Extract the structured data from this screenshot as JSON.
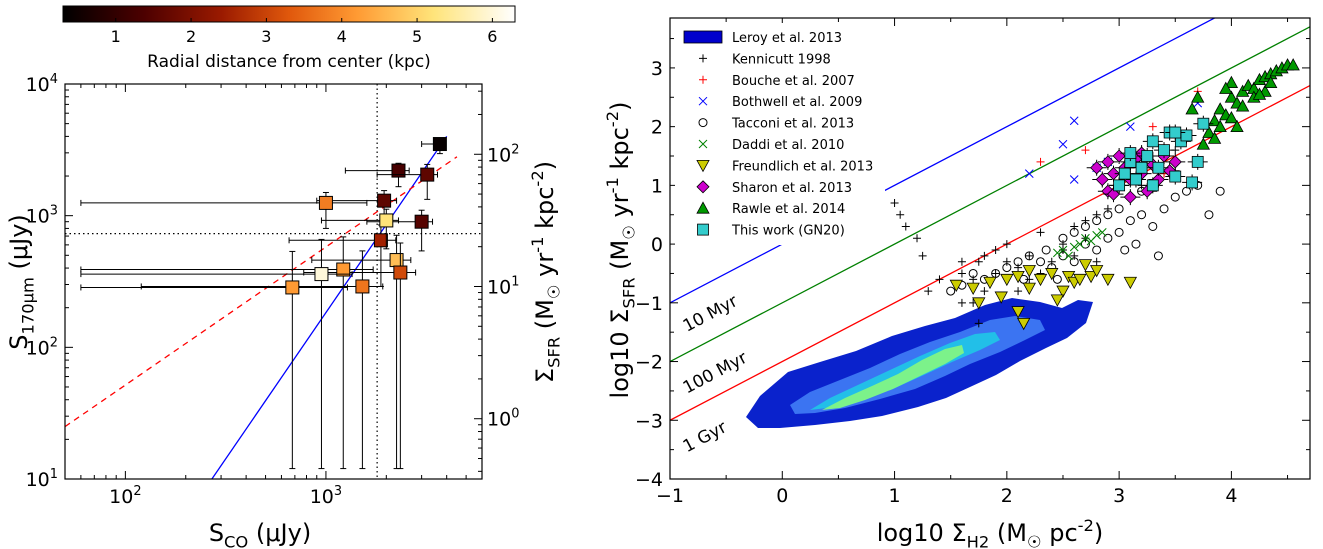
{
  "chart_data": [
    {
      "type": "scatter",
      "xlabel": "S_CO (μJy)",
      "ylabel": "S_170μm (μJy)",
      "y2label": "Σ_SFR (M_☉ yr^-1 kpc^-2)",
      "xscale": "log",
      "yscale": "log",
      "xlim": [
        50,
        6000
      ],
      "ylim": [
        10,
        10000
      ],
      "y2lim": [
        0.35,
        340
      ],
      "xticks": [
        "10^2",
        "10^3"
      ],
      "yticks": [
        "10^1",
        "10^2",
        "10^3",
        "10^4"
      ],
      "y2ticks": [
        "10^0",
        "10^1",
        "10^2"
      ],
      "colorbar": {
        "label": "Radial distance from center (kpc)",
        "range": [
          0.3,
          6.3
        ],
        "ticks": [
          "1",
          "2",
          "3",
          "4",
          "5",
          "6"
        ],
        "colormap": "afmhot"
      },
      "reference_lines": {
        "vertical_dotted_x": 1800,
        "horizontal_dotted_y": 730,
        "blue_solid": [
          [
            270,
            10
          ],
          [
            4000,
            4000
          ]
        ],
        "red_dashed": [
          [
            50,
            25
          ],
          [
            4500,
            2800
          ]
        ]
      },
      "points": [
        {
          "x": 3700,
          "y": 3500,
          "r": 0.4,
          "xerr": 200,
          "yerr": 300
        },
        {
          "x": 2300,
          "y": 2200,
          "r": 1.3,
          "xerr": 300,
          "yerr": 300
        },
        {
          "x": 3200,
          "y": 2050,
          "r": 1.6,
          "xerr": 400,
          "yerr": 400
        },
        {
          "x": 1950,
          "y": 1300,
          "r": 1.6,
          "xerr": 300,
          "yerr": 250
        },
        {
          "x": 3000,
          "y": 900,
          "r": 1.5,
          "xerr": 400,
          "yerr": 200
        },
        {
          "x": 1880,
          "y": 650,
          "r": 2.5,
          "xerr": 350,
          "yerr": 200
        },
        {
          "x": 1000,
          "y": 1250,
          "r": 3.8,
          "xerr": 600,
          "yerr": 250
        },
        {
          "x": 2000,
          "y": 920,
          "r": 5.2,
          "xerr": 300,
          "yerr": 200
        },
        {
          "x": 2250,
          "y": 460,
          "r": 4.7,
          "xerr": 400,
          "yerr": 250
        },
        {
          "x": 2350,
          "y": 370,
          "r": 3.1,
          "xerr": 450,
          "yerr": 250
        },
        {
          "x": 1220,
          "y": 390,
          "r": 4.2,
          "xerr": 500,
          "yerr": 300
        },
        {
          "x": 950,
          "y": 360,
          "r": 6.0,
          "xerr": 400,
          "yerr": 300
        },
        {
          "x": 1520,
          "y": 290,
          "r": 3.7,
          "xerr": 400,
          "yerr": 250
        },
        {
          "x": 680,
          "y": 285,
          "r": 4.2,
          "xerr": 600,
          "yerr": 250
        }
      ]
    },
    {
      "type": "scatter",
      "xlabel": "log10 Σ_H2 (M_☉ pc^-2)",
      "ylabel": "log10 Σ_SFR (M_☉ yr^-1 kpc^-2)",
      "xlim": [
        -1,
        4.7
      ],
      "ylim": [
        -4,
        3.85
      ],
      "xticks": [
        "−1",
        "0",
        "1",
        "2",
        "3",
        "4"
      ],
      "yticks": [
        "−4",
        "−3",
        "−2",
        "−1",
        "0",
        "1",
        "2",
        "3"
      ],
      "legend": "top-left",
      "lines": [
        {
          "name": "10 Myr",
          "color": "#0000ff",
          "intercept": -1.0,
          "slope": 1.0
        },
        {
          "name": "100 Myr",
          "color": "#008000",
          "intercept": -2.0,
          "slope": 1.0
        },
        {
          "name": "1 Gyr",
          "color": "#ff0000",
          "intercept": -3.0,
          "slope": 1.0
        }
      ],
      "series": [
        {
          "name": "Leroy et al. 2013",
          "marker": "contour",
          "color": "#0000cc"
        },
        {
          "name": "Kennicutt 1998",
          "marker": "plus",
          "color": "#000000",
          "points": [
            [
              1.3,
              -0.8
            ],
            [
              1.4,
              -0.6
            ],
            [
              1.6,
              -0.5
            ],
            [
              1.6,
              -0.3
            ],
            [
              1.7,
              -0.6
            ],
            [
              1.7,
              -1.0
            ],
            [
              1.75,
              -0.3
            ],
            [
              1.8,
              -0.2
            ],
            [
              1.8,
              -0.8
            ],
            [
              1.9,
              -0.5
            ],
            [
              1.9,
              -0.1
            ],
            [
              2.0,
              0.0
            ],
            [
              2.0,
              -0.3
            ],
            [
              2.1,
              -0.4
            ],
            [
              2.1,
              -0.8
            ],
            [
              2.2,
              -0.2
            ],
            [
              2.2,
              -0.6
            ],
            [
              2.3,
              0.2
            ],
            [
              2.3,
              -0.5
            ],
            [
              2.4,
              -0.3
            ],
            [
              2.5,
              0.0
            ],
            [
              2.5,
              -0.1
            ],
            [
              2.6,
              0.3
            ],
            [
              2.6,
              -0.2
            ],
            [
              2.7,
              0.1
            ],
            [
              2.7,
              0.4
            ],
            [
              2.8,
              0.5
            ],
            [
              2.8,
              -0.3
            ],
            [
              2.9,
              0.6
            ],
            [
              1.0,
              0.7
            ],
            [
              1.05,
              0.5
            ],
            [
              1.1,
              0.3
            ],
            [
              1.2,
              0.1
            ],
            [
              1.25,
              -0.2
            ],
            [
              3.1,
              1.3
            ],
            [
              3.2,
              1.0
            ],
            [
              3.3,
              1.5
            ],
            [
              3.4,
              1.2
            ],
            [
              3.5,
              1.6
            ],
            [
              3.6,
              1.9
            ],
            [
              1.75,
              -1.35
            ],
            [
              1.6,
              -1.0
            ]
          ]
        },
        {
          "name": "Bouche et al. 2007",
          "marker": "plus",
          "color": "#ff0000",
          "points": [
            [
              2.3,
              1.4
            ],
            [
              2.7,
              1.6
            ],
            [
              3.0,
              1.5
            ],
            [
              3.2,
              1.6
            ],
            [
              3.3,
              2.0
            ],
            [
              3.7,
              2.6
            ],
            [
              3.4,
              1.2
            ]
          ]
        },
        {
          "name": "Bothwell et al. 2009",
          "marker": "x",
          "color": "#0000ff",
          "points": [
            [
              2.5,
              1.7
            ],
            [
              2.2,
              1.2
            ],
            [
              2.6,
              1.1
            ],
            [
              2.8,
              1.3
            ],
            [
              2.9,
              1.4
            ],
            [
              3.0,
              1.2
            ],
            [
              3.1,
              2.0
            ],
            [
              2.6,
              2.1
            ],
            [
              3.7,
              2.4
            ]
          ]
        },
        {
          "name": "Tacconi et al. 2013",
          "marker": "circle",
          "color": "#000000",
          "points": [
            [
              1.9,
              -0.5
            ],
            [
              2.0,
              -0.4
            ],
            [
              2.1,
              -0.3
            ],
            [
              2.2,
              -0.2
            ],
            [
              2.3,
              -0.3
            ],
            [
              2.35,
              -0.1
            ],
            [
              2.4,
              -0.4
            ],
            [
              2.5,
              -0.2
            ],
            [
              2.5,
              0.1
            ],
            [
              2.6,
              -0.3
            ],
            [
              2.6,
              0.2
            ],
            [
              2.7,
              0.0
            ],
            [
              2.7,
              0.3
            ],
            [
              2.8,
              -0.1
            ],
            [
              2.8,
              0.4
            ],
            [
              2.9,
              0.1
            ],
            [
              2.9,
              0.5
            ],
            [
              3.0,
              0.2
            ],
            [
              3.0,
              0.6
            ],
            [
              3.1,
              0.4
            ],
            [
              3.1,
              0.8
            ],
            [
              3.2,
              0.5
            ],
            [
              3.2,
              0.9
            ],
            [
              3.3,
              0.3
            ],
            [
              3.3,
              1.0
            ],
            [
              3.4,
              0.6
            ],
            [
              3.5,
              0.8
            ],
            [
              3.6,
              0.9
            ],
            [
              3.7,
              1.0
            ],
            [
              3.8,
              0.5
            ],
            [
              3.9,
              0.9
            ],
            [
              1.5,
              -0.8
            ],
            [
              1.6,
              -0.7
            ],
            [
              1.7,
              -0.5
            ],
            [
              1.8,
              -0.6
            ],
            [
              2.15,
              -0.6
            ],
            [
              2.45,
              -0.6
            ],
            [
              3.15,
              0.0
            ],
            [
              3.35,
              -0.2
            ],
            [
              3.05,
              -0.1
            ]
          ]
        },
        {
          "name": "Daddi et al. 2010",
          "marker": "x",
          "color": "#008000",
          "points": [
            [
              2.5,
              -0.1
            ],
            [
              2.6,
              -0.05
            ],
            [
              2.65,
              0.0
            ],
            [
              2.7,
              0.1
            ],
            [
              2.75,
              0.05
            ],
            [
              2.8,
              0.15
            ],
            [
              2.85,
              0.2
            ],
            [
              2.55,
              -0.2
            ],
            [
              2.45,
              -0.15
            ]
          ]
        },
        {
          "name": "Freundlich et al. 2013",
          "marker": "triangle-down",
          "color": "#cccc00",
          "points": [
            [
              1.55,
              -0.7
            ],
            [
              1.7,
              -0.75
            ],
            [
              1.85,
              -0.65
            ],
            [
              2.0,
              -0.6
            ],
            [
              2.1,
              -0.55
            ],
            [
              2.2,
              -0.45
            ],
            [
              2.3,
              -0.6
            ],
            [
              2.4,
              -0.5
            ],
            [
              2.5,
              -0.8
            ],
            [
              2.55,
              -0.55
            ],
            [
              2.6,
              -0.65
            ],
            [
              2.7,
              -0.35
            ],
            [
              2.75,
              -0.55
            ],
            [
              2.8,
              -0.45
            ],
            [
              2.9,
              -0.6
            ],
            [
              3.1,
              -0.65
            ],
            [
              2.1,
              -1.15
            ],
            [
              2.15,
              -1.35
            ],
            [
              2.65,
              -0.6
            ],
            [
              2.45,
              -0.95
            ],
            [
              1.95,
              -0.9
            ],
            [
              1.75,
              -1.0
            ],
            [
              2.2,
              -0.75
            ]
          ]
        },
        {
          "name": "Sharon et al. 2013",
          "marker": "diamond",
          "color": "#cc00cc",
          "points": [
            [
              2.8,
              1.3
            ],
            [
              2.85,
              1.1
            ],
            [
              2.9,
              1.4
            ],
            [
              2.9,
              0.9
            ],
            [
              2.95,
              1.2
            ],
            [
              3.0,
              1.5
            ],
            [
              3.0,
              1.0
            ],
            [
              3.05,
              1.3
            ],
            [
              3.1,
              0.8
            ],
            [
              3.1,
              1.1
            ],
            [
              3.15,
              1.45
            ],
            [
              3.2,
              1.2
            ],
            [
              3.25,
              0.9
            ],
            [
              3.3,
              1.35
            ],
            [
              3.35,
              1.1
            ],
            [
              3.4,
              1.5
            ],
            [
              3.45,
              1.25
            ],
            [
              3.5,
              1.4
            ],
            [
              2.95,
              0.85
            ],
            [
              3.2,
              1.55
            ]
          ]
        },
        {
          "name": "Rawle et al. 2014",
          "marker": "triangle",
          "color": "#009900",
          "points": [
            [
              3.8,
              1.9
            ],
            [
              3.85,
              2.1
            ],
            [
              3.9,
              2.3
            ],
            [
              3.95,
              2.2
            ],
            [
              4.0,
              2.5
            ],
            [
              4.05,
              2.4
            ],
            [
              4.1,
              2.6
            ],
            [
              4.15,
              2.7
            ],
            [
              4.2,
              2.65
            ],
            [
              4.25,
              2.8
            ],
            [
              4.3,
              2.85
            ],
            [
              4.35,
              2.9
            ],
            [
              4.4,
              2.95
            ],
            [
              4.45,
              3.0
            ],
            [
              4.5,
              3.05
            ],
            [
              4.55,
              3.05
            ],
            [
              3.75,
              1.7
            ],
            [
              3.9,
              2.0
            ],
            [
              4.0,
              2.15
            ],
            [
              4.1,
              2.35
            ],
            [
              4.2,
              2.5
            ],
            [
              4.3,
              2.6
            ],
            [
              4.0,
              2.75
            ],
            [
              3.95,
              2.65
            ],
            [
              4.05,
              2.0
            ],
            [
              3.85,
              1.8
            ],
            [
              4.25,
              2.55
            ],
            [
              4.35,
              2.75
            ],
            [
              3.7,
              2.5
            ],
            [
              3.65,
              2.3
            ]
          ]
        },
        {
          "name": "This work (GN20)",
          "marker": "square",
          "color": "#33cccc",
          "points": [
            [
              3.0,
              1.0
            ],
            [
              3.05,
              1.2
            ],
            [
              3.1,
              1.4
            ],
            [
              3.15,
              1.1
            ],
            [
              3.2,
              1.3
            ],
            [
              3.25,
              1.5
            ],
            [
              3.3,
              1.0
            ],
            [
              3.35,
              1.3
            ],
            [
              3.4,
              1.6
            ],
            [
              3.45,
              1.9
            ],
            [
              3.5,
              1.15
            ],
            [
              3.55,
              1.75
            ],
            [
              3.6,
              1.85
            ],
            [
              3.65,
              1.05
            ],
            [
              3.7,
              1.4
            ],
            [
              3.75,
              2.05
            ],
            [
              3.3,
              1.75
            ],
            [
              3.5,
              1.9
            ],
            [
              3.1,
              1.55
            ]
          ]
        }
      ]
    }
  ]
}
